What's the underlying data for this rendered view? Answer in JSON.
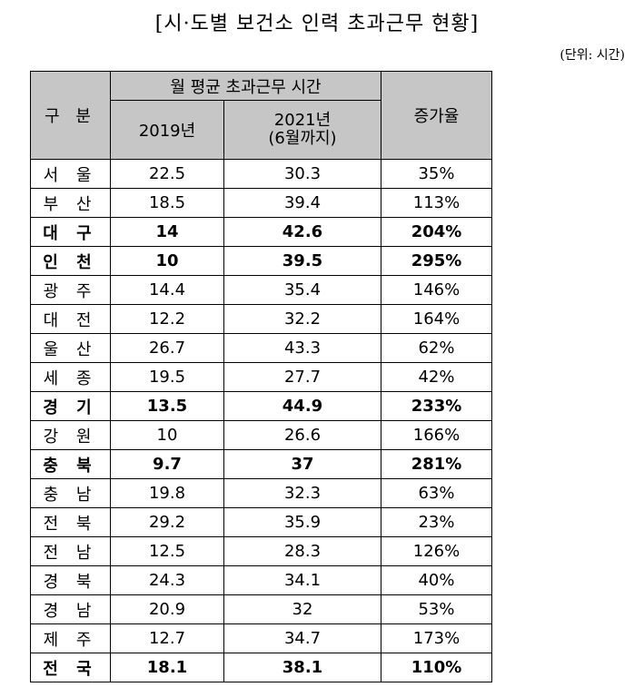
{
  "title": "[시·도별 보건소 인력 초과근무 현황]",
  "unit": "(단위: 시간)",
  "table": {
    "headers": {
      "region": "구 분",
      "group": "월 평균 초과근무 시간",
      "y2019": "2019년",
      "y2021_line1": "2021년",
      "y2021_line2": "(6월까지)",
      "rate": "증가율"
    },
    "rows": [
      {
        "region": "서 울",
        "y2019": "22.5",
        "y2021": "30.3",
        "rate": "35%",
        "bold": false
      },
      {
        "region": "부 산",
        "y2019": "18.5",
        "y2021": "39.4",
        "rate": "113%",
        "bold": false
      },
      {
        "region": "대 구",
        "y2019": "14",
        "y2021": "42.6",
        "rate": "204%",
        "bold": true
      },
      {
        "region": "인 천",
        "y2019": "10",
        "y2021": "39.5",
        "rate": "295%",
        "bold": true
      },
      {
        "region": "광 주",
        "y2019": "14.4",
        "y2021": "35.4",
        "rate": "146%",
        "bold": false
      },
      {
        "region": "대 전",
        "y2019": "12.2",
        "y2021": "32.2",
        "rate": "164%",
        "bold": false
      },
      {
        "region": "울 산",
        "y2019": "26.7",
        "y2021": "43.3",
        "rate": "62%",
        "bold": false
      },
      {
        "region": "세 종",
        "y2019": "19.5",
        "y2021": "27.7",
        "rate": "42%",
        "bold": false
      },
      {
        "region": "경 기",
        "y2019": "13.5",
        "y2021": "44.9",
        "rate": "233%",
        "bold": true
      },
      {
        "region": "강 원",
        "y2019": "10",
        "y2021": "26.6",
        "rate": "166%",
        "bold": false
      },
      {
        "region": "충 북",
        "y2019": "9.7",
        "y2021": "37",
        "rate": "281%",
        "bold": true
      },
      {
        "region": "충 남",
        "y2019": "19.8",
        "y2021": "32.3",
        "rate": "63%",
        "bold": false
      },
      {
        "region": "전 북",
        "y2019": "29.2",
        "y2021": "35.9",
        "rate": "23%",
        "bold": false
      },
      {
        "region": "전 남",
        "y2019": "12.5",
        "y2021": "28.3",
        "rate": "126%",
        "bold": false
      },
      {
        "region": "경 북",
        "y2019": "24.3",
        "y2021": "34.1",
        "rate": "40%",
        "bold": false
      },
      {
        "region": "경 남",
        "y2019": "20.9",
        "y2021": "32",
        "rate": "53%",
        "bold": false
      },
      {
        "region": "제 주",
        "y2019": "12.7",
        "y2021": "34.7",
        "rate": "173%",
        "bold": false
      },
      {
        "region": "전 국",
        "y2019": "18.1",
        "y2021": "38.1",
        "rate": "110%",
        "bold": true
      }
    ]
  }
}
